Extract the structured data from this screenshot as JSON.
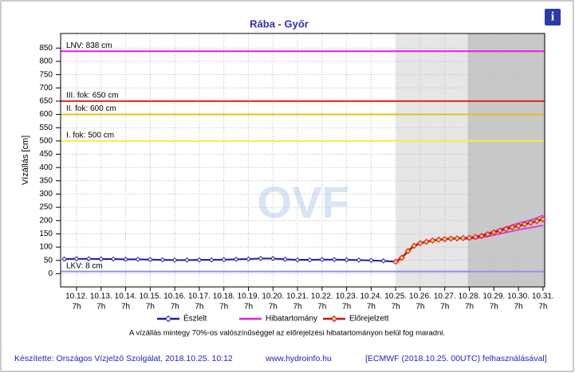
{
  "chart_data": {
    "type": "line",
    "title": "Rába - Győr",
    "y_label": "Vízállás [cm]",
    "ylim": [
      -50,
      905
    ],
    "yticks": [
      0,
      50,
      100,
      150,
      200,
      250,
      300,
      350,
      400,
      450,
      500,
      550,
      600,
      650,
      700,
      750,
      800,
      850
    ],
    "xlim": [
      11.35,
      31.07
    ],
    "xticks": [
      {
        "value": 12,
        "label": "10.12."
      },
      {
        "value": 13,
        "label": "10.13."
      },
      {
        "value": 14,
        "label": "10.14."
      },
      {
        "value": 15,
        "label": "10.15."
      },
      {
        "value": 16,
        "label": "10.16."
      },
      {
        "value": 17,
        "label": "10.17."
      },
      {
        "value": 18,
        "label": "10.18."
      },
      {
        "value": 19,
        "label": "10.19."
      },
      {
        "value": 20,
        "label": "10.20."
      },
      {
        "value": 21,
        "label": "10.21."
      },
      {
        "value": 22,
        "label": "10.22."
      },
      {
        "value": 23,
        "label": "10.23."
      },
      {
        "value": 24,
        "label": "10.24."
      },
      {
        "value": 25,
        "label": "10.25."
      },
      {
        "value": 26,
        "label": "10.26."
      },
      {
        "value": 27,
        "label": "10.27."
      },
      {
        "value": 28,
        "label": "10.28."
      },
      {
        "value": 29,
        "label": "10.29."
      },
      {
        "value": 30,
        "label": "10.30."
      },
      {
        "value": 31,
        "label": "10.31."
      }
    ],
    "xtick_hour": "7h",
    "grid": true,
    "shaded": [
      {
        "from": 25.02,
        "to": 31.07,
        "color": "#e6e6e6"
      },
      {
        "from": 27.94,
        "to": 31.07,
        "color": "#c8c8c8"
      }
    ],
    "levels": [
      {
        "label": "LNV: 838 cm",
        "value": 838,
        "color": "#e020e0"
      },
      {
        "label": "III. fok: 650 cm",
        "value": 650,
        "color": "#e82020"
      },
      {
        "label": "II. fok: 600 cm",
        "value": 600,
        "color": "#e0c020"
      },
      {
        "label": "I. fok: 500 cm",
        "value": 500,
        "color": "#f0f040"
      },
      {
        "label": "LKV: 8 cm",
        "value": 8,
        "color": "#9090f0"
      }
    ],
    "series": [
      {
        "name": "Észlelt",
        "color": "#1c1ca8",
        "x": [
          11.5,
          12,
          12.5,
          13,
          13.5,
          14,
          14.5,
          15,
          15.5,
          16,
          16.5,
          17,
          17.5,
          18,
          18.5,
          19,
          19.5,
          20,
          20.5,
          21,
          21.5,
          22,
          22.5,
          23,
          23.5,
          24,
          24.5,
          25
        ],
        "values": [
          55,
          56,
          56,
          55,
          55,
          54,
          54,
          53,
          52,
          51,
          51,
          52,
          52,
          53,
          54,
          55,
          57,
          57,
          54,
          52,
          52,
          53,
          53,
          52,
          51,
          50,
          48,
          45
        ]
      },
      {
        "name": "Előrejelzett",
        "color": "#d01010",
        "x": [
          25,
          25.25,
          25.5,
          25.75,
          26,
          26.25,
          26.5,
          26.75,
          27,
          27.25,
          27.5,
          27.75,
          28,
          28.25,
          28.5,
          28.75,
          29,
          29.25,
          29.5,
          29.75,
          30,
          30.25,
          30.5,
          30.75,
          31
        ],
        "values": [
          45,
          60,
          85,
          105,
          115,
          120,
          125,
          128,
          130,
          132,
          133,
          134,
          135,
          138,
          142,
          148,
          155,
          162,
          168,
          175,
          180,
          186,
          192,
          198,
          205
        ]
      }
    ],
    "band": {
      "name": "Hibatartomány",
      "color": "#e020e0",
      "x": [
        27.75,
        28,
        28.25,
        28.5,
        28.75,
        29,
        29.25,
        29.5,
        29.75,
        30,
        30.25,
        30.5,
        30.75,
        31
      ],
      "upper": [
        133,
        136,
        140,
        146,
        153,
        160,
        167,
        175,
        183,
        190,
        196,
        202,
        210,
        220
      ],
      "lower": [
        130,
        131,
        133,
        136,
        140,
        145,
        150,
        155,
        160,
        165,
        170,
        173,
        178,
        182
      ]
    },
    "watermark": "OVF",
    "note": "A vízállás mintegy 70%-os valószínűséggel az előrejelzési hibatartományon belül fog maradni."
  },
  "footer": {
    "author": "Készítette: Országos Vízjelző Szolgálat, 2018.10.25. 10:12",
    "site": "www.hydroinfo.hu",
    "source": "[ECMWF (2018.10.25. 00UTC) felhasználásával]"
  },
  "info_icon": "i"
}
